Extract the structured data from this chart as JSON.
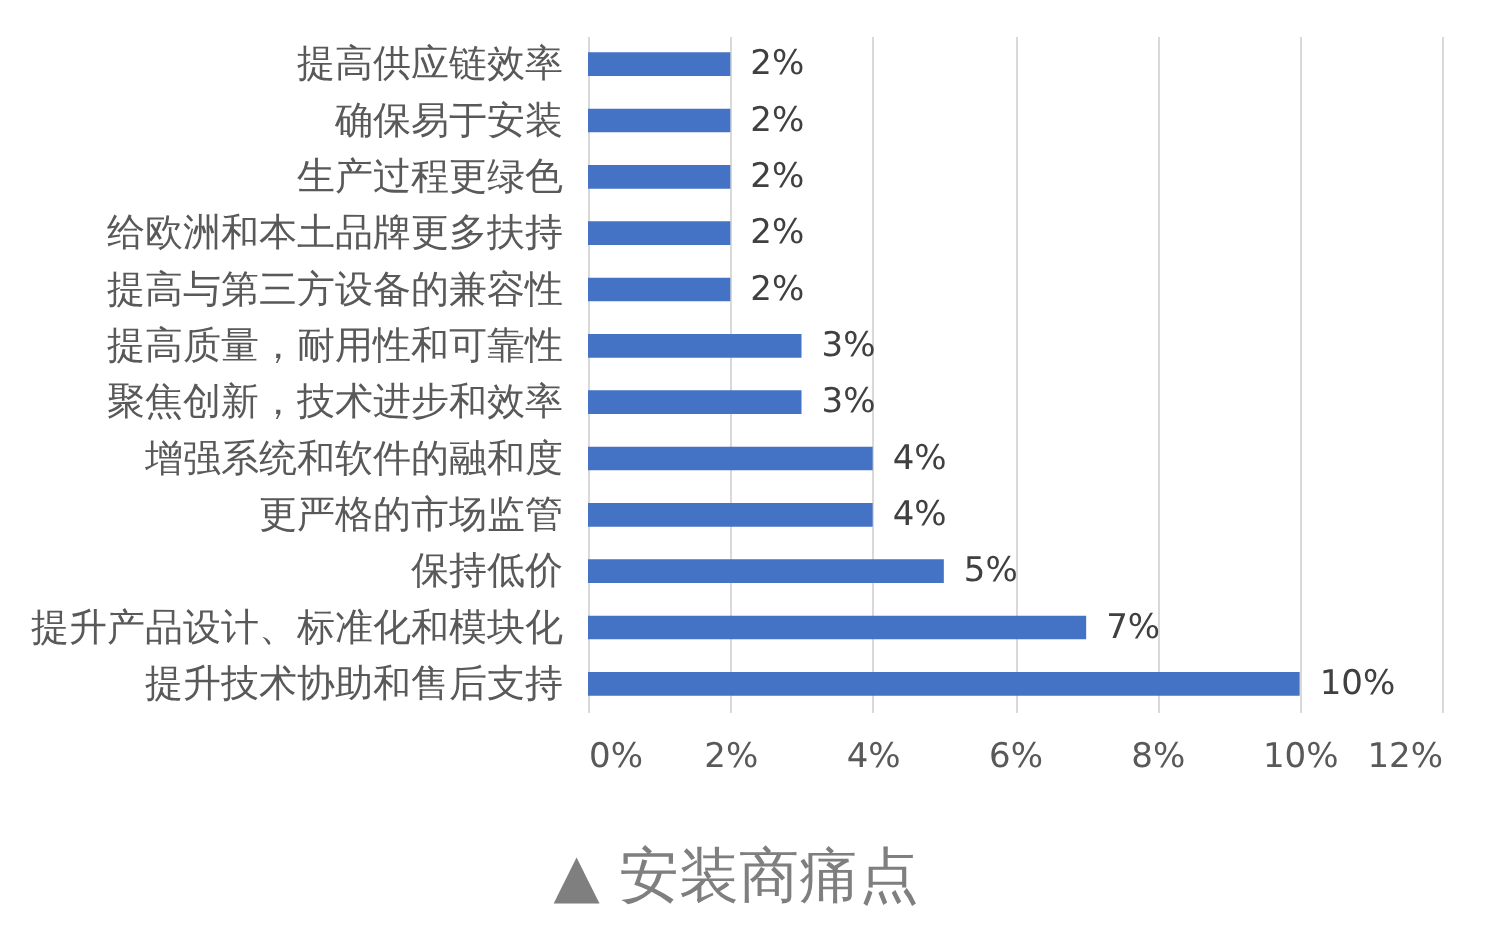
{
  "chart_data": {
    "type": "bar",
    "orientation": "horizontal",
    "categories": [
      "提高供应链效率",
      "确保易于安装",
      "生产过程更绿色",
      "给欧洲和本土品牌更多扶持",
      "提高与第三方设备的兼容性",
      "提高质量，耐用性和可靠性",
      "聚焦创新，技术进步和效率",
      "增强系统和软件的融和度",
      "更严格的市场监管",
      "保持低价",
      "提升产品设计、标准化和模块化",
      "提升技术协助和售后支持"
    ],
    "values": [
      2,
      2,
      2,
      2,
      2,
      3,
      3,
      4,
      4,
      5,
      7,
      10
    ],
    "color": "#4472c4",
    "value_labels": [
      "2%",
      "2%",
      "2%",
      "2%",
      "2%",
      "3%",
      "3%",
      "4%",
      "4%",
      "5%",
      "7%",
      "10%"
    ],
    "xlim": [
      0,
      12
    ],
    "xticks": [
      {
        "value": 0,
        "label": "0%"
      },
      {
        "value": 2,
        "label": "2%"
      },
      {
        "value": 4,
        "label": "4%"
      },
      {
        "value": 6,
        "label": "6%"
      },
      {
        "value": 8,
        "label": "8%"
      },
      {
        "value": 10,
        "label": "10%"
      },
      {
        "value": 12,
        "label": "12%"
      }
    ],
    "grid": "x",
    "annotations": [
      "▲ 安装商痛点"
    ]
  }
}
